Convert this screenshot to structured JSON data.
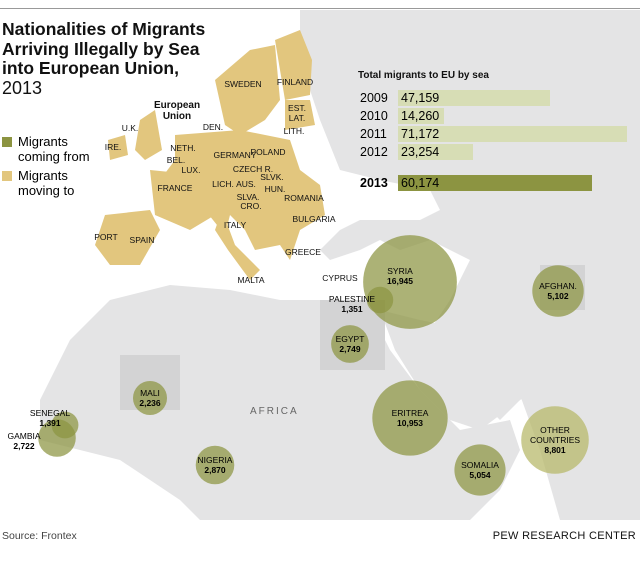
{
  "title": "Nationalities of Migrants Arriving Illegally by Sea into European Union,",
  "year": "2013",
  "legend": [
    {
      "label": "Migrants coming from",
      "color": "#8c9441"
    },
    {
      "label": "Migrants moving to",
      "color": "#e2c67e"
    }
  ],
  "eu_label": "European Union",
  "africa_label": "AFRICA",
  "destination_labels": [
    "SWEDEN",
    "FINLAND",
    "EST.",
    "LAT.",
    "LITH.",
    "DEN.",
    "U.K.",
    "IRE.",
    "NETH.",
    "GERMANY",
    "POLAND",
    "BEL.",
    "LUX.",
    "CZECH R.",
    "SLVK.",
    "FRANCE",
    "LICH.",
    "AUS.",
    "HUN.",
    "SLVA.",
    "CRO.",
    "ROMANIA",
    "BULGARIA",
    "ITALY",
    "PORT",
    "SPAIN",
    "GREECE",
    "MALTA",
    "CYPRUS"
  ],
  "origins": [
    {
      "name": "SYRIA",
      "value": 16945,
      "value_label": "16,945"
    },
    {
      "name": "AFGHAN.",
      "value": 5102,
      "value_label": "5,102"
    },
    {
      "name": "PALESTINE",
      "value": 1351,
      "value_label": "1,351"
    },
    {
      "name": "EGYPT",
      "value": 2749,
      "value_label": "2,749"
    },
    {
      "name": "MALI",
      "value": 2236,
      "value_label": "2,236"
    },
    {
      "name": "SENEGAL",
      "value": 1391,
      "value_label": "1,391"
    },
    {
      "name": "GAMBIA",
      "value": 2722,
      "value_label": "2,722"
    },
    {
      "name": "NIGERIA",
      "value": 2870,
      "value_label": "2,870"
    },
    {
      "name": "ERITREA",
      "value": 10953,
      "value_label": "10,953"
    },
    {
      "name": "SOMALIA",
      "value": 5054,
      "value_label": "5,054"
    },
    {
      "name": "OTHER COUNTRIES",
      "value": 8801,
      "value_label": "8,801"
    }
  ],
  "totals": {
    "title": "Total migrants to EU by sea",
    "rows": [
      {
        "year": "2009",
        "value": 47159,
        "label": "47,159"
      },
      {
        "year": "2010",
        "value": 14260,
        "label": "14,260"
      },
      {
        "year": "2011",
        "value": 71172,
        "label": "71,172"
      },
      {
        "year": "2012",
        "value": 23254,
        "label": "23,254"
      },
      {
        "year": "2013",
        "value": 60174,
        "label": "60,174",
        "highlight": true
      }
    ]
  },
  "source": "Source: Frontex",
  "credit": "PEW RESEARCH CENTER"
}
